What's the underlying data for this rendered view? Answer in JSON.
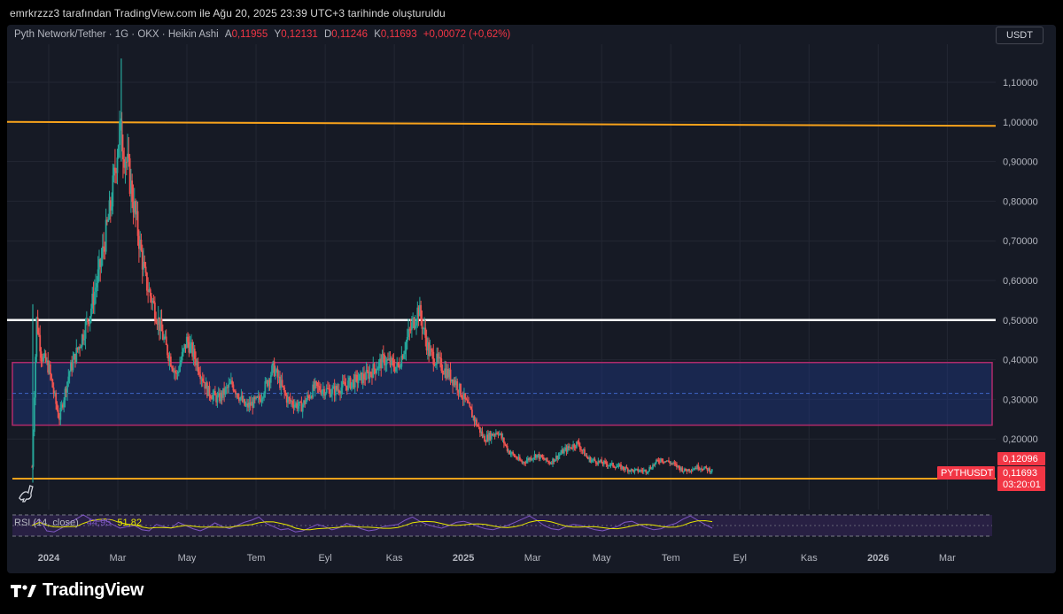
{
  "caption": "emrkrzzz3 tarafından TradingView.com ile Ağu 20, 2025 23:39 UTC+3 tarihinde oluşturuldu",
  "legend": {
    "symbol": "Pyth Network/Tether · 1G · OKX · Heikin Ashi",
    "open_label": "A",
    "open": "0,11955",
    "high_label": "Y",
    "high": "0,12131",
    "low_label": "D",
    "low": "0,11246",
    "close_label": "K",
    "close": "0,11693",
    "change": "+0,00072 (+0,62%)"
  },
  "currency_button": "USDT",
  "price_tags": {
    "upper": "0,12096",
    "symbol": "PYTHUSDT",
    "last": "0,11693",
    "countdown": "03:20:01"
  },
  "rsi": {
    "label": "RSI (14, close)",
    "value": "44,95",
    "ma_value": "51,82"
  },
  "brand": "TradingView",
  "colors": {
    "up": "#26a69a",
    "down": "#ef5350",
    "orange_line": "#f7a21b",
    "white_line": "#ffffff",
    "zone": "#1e3a8a",
    "zone_border": "#b02a6b",
    "rsi_line": "#7e57c2",
    "rsi_ma": "#e6e600"
  },
  "chart_data": {
    "type": "candlestick",
    "style": "Heikin Ashi",
    "ylim": [
      0.0,
      1.15
    ],
    "y_ticks": [
      "1,10000",
      "1,00000",
      "0,90000",
      "0,80000",
      "0,70000",
      "0,60000",
      "0,50000",
      "0,40000",
      "0,30000",
      "0,20000"
    ],
    "y_tick_values": [
      1.1,
      1.0,
      0.9,
      0.8,
      0.7,
      0.6,
      0.5,
      0.4,
      0.3,
      0.2
    ],
    "x_ticks": [
      "2024",
      "Mar",
      "May",
      "Tem",
      "Eyl",
      "Kas",
      "2025",
      "Mar",
      "May",
      "Tem",
      "Eyl",
      "Kas",
      "2026",
      "Mar"
    ],
    "x_tick_bold": [
      true,
      false,
      false,
      false,
      false,
      false,
      true,
      false,
      false,
      false,
      false,
      false,
      true,
      false
    ],
    "x_tick_months": [
      0,
      2,
      4,
      6,
      8,
      10,
      12,
      14,
      16,
      18,
      20,
      22,
      24,
      26
    ],
    "xlim_months": [
      -1.05,
      27.4
    ],
    "price_path": [
      [
        -0.48,
        0.13
      ],
      [
        -0.35,
        0.5
      ],
      [
        -0.2,
        0.41
      ],
      [
        0.0,
        0.38
      ],
      [
        0.3,
        0.25
      ],
      [
        0.6,
        0.37
      ],
      [
        0.9,
        0.44
      ],
      [
        1.2,
        0.52
      ],
      [
        1.5,
        0.64
      ],
      [
        1.8,
        0.79
      ],
      [
        2.05,
        0.98
      ],
      [
        2.3,
        0.88
      ],
      [
        2.55,
        0.74
      ],
      [
        2.8,
        0.6
      ],
      [
        3.1,
        0.52
      ],
      [
        3.4,
        0.43
      ],
      [
        3.7,
        0.36
      ],
      [
        4.0,
        0.45
      ],
      [
        4.3,
        0.39
      ],
      [
        4.6,
        0.32
      ],
      [
        4.9,
        0.3
      ],
      [
        5.3,
        0.34
      ],
      [
        5.7,
        0.28
      ],
      [
        6.1,
        0.3
      ],
      [
        6.5,
        0.38
      ],
      [
        6.9,
        0.3
      ],
      [
        7.3,
        0.28
      ],
      [
        7.7,
        0.33
      ],
      [
        8.2,
        0.32
      ],
      [
        8.7,
        0.34
      ],
      [
        9.2,
        0.36
      ],
      [
        9.7,
        0.4
      ],
      [
        10.1,
        0.38
      ],
      [
        10.4,
        0.46
      ],
      [
        10.7,
        0.53
      ],
      [
        11.0,
        0.42
      ],
      [
        11.4,
        0.38
      ],
      [
        11.8,
        0.34
      ],
      [
        12.2,
        0.27
      ],
      [
        12.6,
        0.2
      ],
      [
        13.0,
        0.22
      ],
      [
        13.3,
        0.17
      ],
      [
        13.7,
        0.14
      ],
      [
        14.1,
        0.16
      ],
      [
        14.5,
        0.14
      ],
      [
        14.9,
        0.17
      ],
      [
        15.3,
        0.19
      ],
      [
        15.6,
        0.15
      ],
      [
        16.0,
        0.14
      ],
      [
        16.5,
        0.13
      ],
      [
        16.9,
        0.12
      ],
      [
        17.3,
        0.12
      ],
      [
        17.7,
        0.15
      ],
      [
        18.0,
        0.14
      ],
      [
        18.4,
        0.12
      ],
      [
        18.8,
        0.13
      ],
      [
        19.2,
        0.12
      ]
    ],
    "vertical_lines": [
      1.0,
      0.1
    ],
    "white_line": 0.5,
    "zone": {
      "top": 0.393,
      "bottom": 0.235,
      "mid": 0.315
    },
    "current_price": 0.11693,
    "rsi_series": [
      50,
      62,
      40,
      38,
      45,
      55,
      62,
      70,
      62,
      58,
      60,
      52,
      45,
      48,
      50,
      42,
      40,
      52,
      48,
      45,
      56,
      50,
      44,
      40,
      46,
      55,
      48,
      44,
      50,
      56,
      60,
      66,
      54,
      48,
      42,
      44,
      38,
      40,
      46,
      52,
      48,
      42,
      46,
      54,
      50,
      44,
      40,
      42,
      48,
      50,
      52,
      60,
      66,
      58,
      52,
      48,
      45,
      50,
      56,
      58,
      54,
      48,
      44,
      42,
      46,
      50,
      56,
      62,
      68,
      60,
      50,
      44,
      42,
      48,
      52,
      50,
      46,
      42,
      40,
      44,
      48,
      56,
      58,
      52,
      46,
      42,
      44,
      50,
      54,
      62,
      68,
      60,
      52,
      45
    ]
  }
}
